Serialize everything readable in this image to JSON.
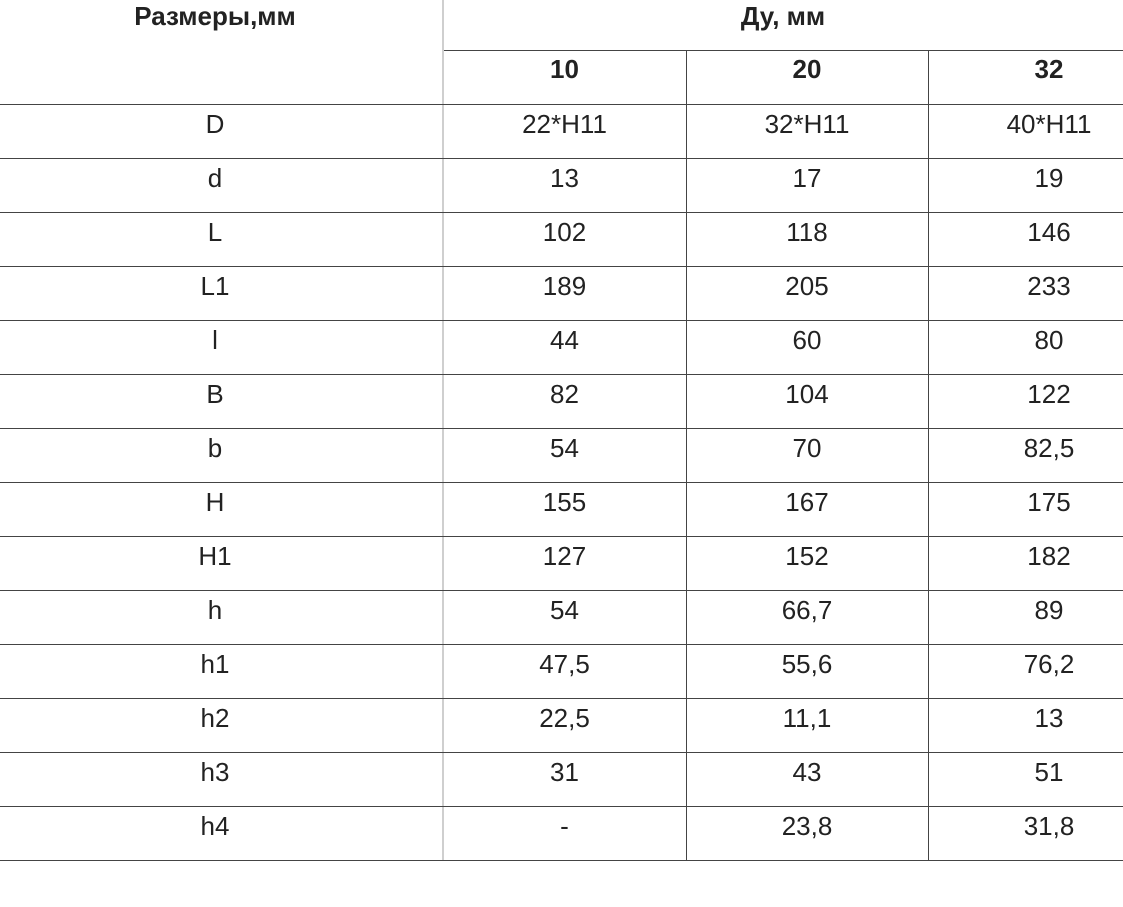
{
  "table": {
    "header": {
      "dimensions_label": "Размеры,мм",
      "du_label": "Ду, мм",
      "du_values": [
        "10",
        "20",
        "32"
      ]
    },
    "rows": [
      {
        "name": "D",
        "values": [
          "22*H11",
          "32*H11",
          "40*H11"
        ]
      },
      {
        "name": "d",
        "values": [
          "13",
          "17",
          "19"
        ]
      },
      {
        "name": "L",
        "values": [
          "102",
          "118",
          "146"
        ]
      },
      {
        "name": "L1",
        "values": [
          "189",
          "205",
          "233"
        ]
      },
      {
        "name": "l",
        "values": [
          "44",
          "60",
          "80"
        ]
      },
      {
        "name": "B",
        "values": [
          "82",
          "104",
          "122"
        ]
      },
      {
        "name": "b",
        "values": [
          "54",
          "70",
          "82,5"
        ]
      },
      {
        "name": "H",
        "values": [
          "155",
          "167",
          "175"
        ]
      },
      {
        "name": "H1",
        "values": [
          "127",
          "152",
          "182"
        ]
      },
      {
        "name": "h",
        "values": [
          "54",
          "66,7",
          "89"
        ]
      },
      {
        "name": "h1",
        "values": [
          "47,5",
          "55,6",
          "76,2"
        ]
      },
      {
        "name": "h2",
        "values": [
          "22,5",
          "11,1",
          "13"
        ]
      },
      {
        "name": "h3",
        "values": [
          "31",
          "43",
          "51"
        ]
      },
      {
        "name": "h4",
        "values": [
          "-",
          "23,8",
          "31,8"
        ]
      }
    ]
  }
}
